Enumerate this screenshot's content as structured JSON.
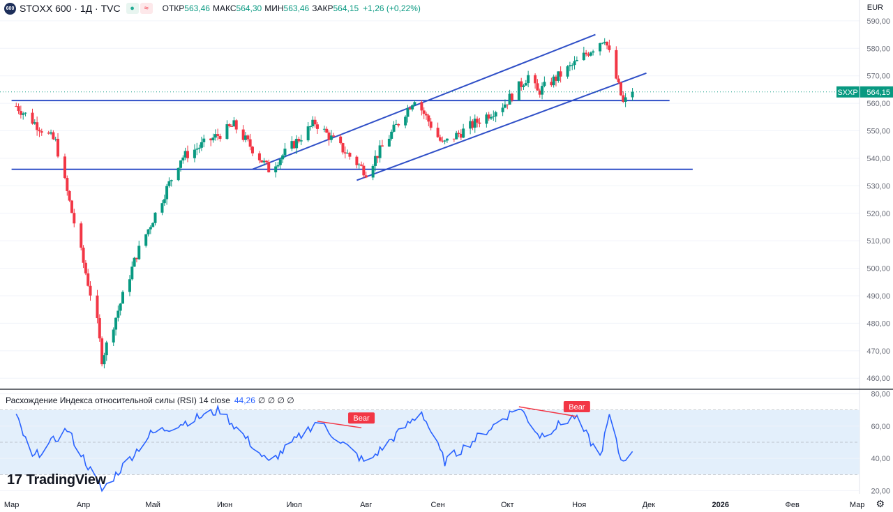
{
  "header": {
    "symbol_badge": "600",
    "title": "STOXX 600 · 1Д · TVC",
    "open_label": "ОТКР",
    "open_value": "563,46",
    "high_label": "МАКС",
    "high_value": "564,30",
    "low_label": "МИН",
    "low_value": "563,46",
    "close_label": "ЗАКР",
    "close_value": "564,15",
    "change_value": "+1,26 (+0,22%)"
  },
  "currency": "EUR",
  "price_tag": {
    "symbol": "SXXP",
    "value": "564,15"
  },
  "rsi_header": {
    "label": "Расхождение Индекса относительной силы (RSI) 14 close",
    "value": "44,26",
    "zeros": "∅ ∅ ∅ ∅"
  },
  "brand": "TradingView",
  "colors": {
    "up": "#089981",
    "down": "#f23645",
    "trendline": "#2f4fc7",
    "rsi_line": "#2962ff",
    "rsi_band": "#e3effb",
    "bear": "#f23645"
  },
  "chart_data": [
    {
      "type": "candlestick",
      "title": "STOXX 600 · 1Д · TVC",
      "ylim": [
        456,
        592
      ],
      "y_ticks": [
        "590,00",
        "580,00",
        "570,00",
        "560,00",
        "550,00",
        "540,00",
        "530,00",
        "520,00",
        "510,00",
        "500,00",
        "490,00",
        "480,00",
        "470,00",
        "460,00"
      ],
      "y_tick_values": [
        590,
        580,
        570,
        560,
        550,
        540,
        530,
        520,
        510,
        500,
        490,
        480,
        470,
        460
      ],
      "x_ticks": [
        "Мар",
        "Апр",
        "Май",
        "Июн",
        "Июл",
        "Авг",
        "Сен",
        "Окт",
        "Ноя",
        "Дек",
        "2026",
        "Фев",
        "Мар"
      ],
      "last_close": 564.15,
      "key_points": [
        {
          "date": "2025-03-03",
          "close": 559
        },
        {
          "date": "2025-03-20",
          "close": 546
        },
        {
          "date": "2025-04-07",
          "close": 480
        },
        {
          "date": "2025-04-09",
          "close": 467
        },
        {
          "date": "2025-04-24",
          "close": 505
        },
        {
          "date": "2025-05-13",
          "close": 540
        },
        {
          "date": "2025-06-05",
          "close": 552
        },
        {
          "date": "2025-06-20",
          "close": 536
        },
        {
          "date": "2025-07-10",
          "close": 553
        },
        {
          "date": "2025-08-01",
          "close": 535
        },
        {
          "date": "2025-08-22",
          "close": 562
        },
        {
          "date": "2025-09-03",
          "close": 545
        },
        {
          "date": "2025-09-30",
          "close": 560
        },
        {
          "date": "2025-10-10",
          "close": 570
        },
        {
          "date": "2025-10-14",
          "close": 564
        },
        {
          "date": "2025-10-31",
          "close": 575
        },
        {
          "date": "2025-11-12",
          "close": 584
        },
        {
          "date": "2025-11-20",
          "close": 560
        },
        {
          "date": "2025-11-24",
          "close": 564.15
        }
      ],
      "trendlines": [
        {
          "from": {
            "date": "2025-03-01",
            "price": 561
          },
          "to": {
            "date": "2025-12-10",
            "price": 561
          }
        },
        {
          "from": {
            "date": "2025-03-01",
            "price": 536
          },
          "to": {
            "date": "2025-12-20",
            "price": 536
          }
        },
        {
          "from": {
            "date": "2025-06-13",
            "price": 536
          },
          "to": {
            "date": "2025-11-08",
            "price": 585
          }
        },
        {
          "from": {
            "date": "2025-07-28",
            "price": 532
          },
          "to": {
            "date": "2025-11-30",
            "price": 571
          }
        }
      ]
    },
    {
      "type": "line",
      "title": "Расхождение Индекса относительной силы (RSI) 14 close",
      "ylim": [
        18,
        82
      ],
      "y_ticks": [
        "80,00",
        "60,00",
        "40,00",
        "20,00"
      ],
      "y_tick_values": [
        80,
        60,
        40,
        20
      ],
      "band": [
        30,
        70
      ],
      "last_value": 44.26,
      "key_points": [
        {
          "date": "2025-03-03",
          "value": 66
        },
        {
          "date": "2025-03-10",
          "value": 40
        },
        {
          "date": "2025-03-25",
          "value": 58
        },
        {
          "date": "2025-04-09",
          "value": 20
        },
        {
          "date": "2025-04-30",
          "value": 55
        },
        {
          "date": "2025-05-30",
          "value": 70
        },
        {
          "date": "2025-06-20",
          "value": 37
        },
        {
          "date": "2025-07-11",
          "value": 63
        },
        {
          "date": "2025-08-01",
          "value": 37
        },
        {
          "date": "2025-08-25",
          "value": 69
        },
        {
          "date": "2025-09-04",
          "value": 38
        },
        {
          "date": "2025-10-06",
          "value": 72
        },
        {
          "date": "2025-10-15",
          "value": 54
        },
        {
          "date": "2025-10-30",
          "value": 66
        },
        {
          "date": "2025-11-10",
          "value": 41
        },
        {
          "date": "2025-11-14",
          "value": 66
        },
        {
          "date": "2025-11-19",
          "value": 39
        },
        {
          "date": "2025-11-24",
          "value": 44.26
        }
      ],
      "divergence_labels": [
        {
          "text": "Bear",
          "from": {
            "date": "2025-07-11",
            "value": 63
          },
          "to": {
            "date": "2025-07-30",
            "value": 59
          }
        },
        {
          "text": "Bear",
          "from": {
            "date": "2025-10-06",
            "value": 72
          },
          "to": {
            "date": "2025-10-31",
            "value": 66
          }
        }
      ]
    }
  ]
}
